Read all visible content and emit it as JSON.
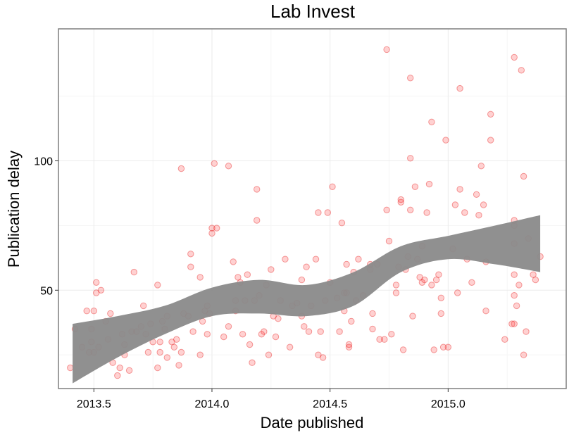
{
  "chart_data": {
    "type": "scatter",
    "title": "Lab Invest",
    "xlabel": "Date published",
    "ylabel": "Publication delay",
    "xlim": [
      2013.35,
      2015.5
    ],
    "ylim": [
      12,
      151
    ],
    "x_ticks": [
      2013.5,
      2014.0,
      2014.5,
      2015.0
    ],
    "x_tick_labels": [
      "2013.5",
      "2014.0",
      "2014.5",
      "2015.0"
    ],
    "y_ticks": [
      50,
      100
    ],
    "y_tick_labels": [
      "50",
      "100"
    ],
    "grid": true,
    "point_color": "#ff0000",
    "smooth_band": {
      "x": [
        2013.41,
        2013.6,
        2013.8,
        2014.0,
        2014.2,
        2014.4,
        2014.6,
        2014.8,
        2015.0,
        2015.2,
        2015.39
      ],
      "lower": [
        14,
        24,
        33,
        40,
        41,
        40,
        44,
        57,
        62,
        60,
        57
      ],
      "upper": [
        37,
        40,
        44,
        51,
        54,
        52,
        57,
        67,
        71,
        75,
        79
      ]
    },
    "points": [
      [
        2013.4,
        20
      ],
      [
        2013.42,
        35
      ],
      [
        2013.45,
        28
      ],
      [
        2013.47,
        42
      ],
      [
        2013.48,
        26
      ],
      [
        2013.49,
        35
      ],
      [
        2013.49,
        30
      ],
      [
        2013.5,
        42
      ],
      [
        2013.5,
        26
      ],
      [
        2013.51,
        53
      ],
      [
        2013.51,
        49
      ],
      [
        2013.52,
        28
      ],
      [
        2013.53,
        50
      ],
      [
        2013.55,
        38
      ],
      [
        2013.56,
        31
      ],
      [
        2013.57,
        41
      ],
      [
        2013.58,
        22
      ],
      [
        2013.6,
        17
      ],
      [
        2013.61,
        20
      ],
      [
        2013.62,
        33
      ],
      [
        2013.63,
        25
      ],
      [
        2013.63,
        29
      ],
      [
        2013.65,
        19
      ],
      [
        2013.66,
        34
      ],
      [
        2013.67,
        57
      ],
      [
        2013.68,
        34
      ],
      [
        2013.7,
        36
      ],
      [
        2013.71,
        44
      ],
      [
        2013.72,
        33
      ],
      [
        2013.73,
        26
      ],
      [
        2013.74,
        37
      ],
      [
        2013.75,
        30
      ],
      [
        2013.77,
        52
      ],
      [
        2013.77,
        20
      ],
      [
        2013.78,
        30
      ],
      [
        2013.78,
        26
      ],
      [
        2013.79,
        38
      ],
      [
        2013.8,
        35
      ],
      [
        2013.81,
        40
      ],
      [
        2013.81,
        24
      ],
      [
        2013.83,
        30
      ],
      [
        2013.84,
        28
      ],
      [
        2013.85,
        31
      ],
      [
        2013.86,
        21
      ],
      [
        2013.87,
        26
      ],
      [
        2013.87,
        97
      ],
      [
        2013.88,
        41
      ],
      [
        2013.9,
        40
      ],
      [
        2013.91,
        64
      ],
      [
        2013.91,
        59
      ],
      [
        2013.92,
        34
      ],
      [
        2013.95,
        55
      ],
      [
        2013.95,
        25
      ],
      [
        2013.96,
        38
      ],
      [
        2013.97,
        42
      ],
      [
        2013.98,
        44
      ],
      [
        2013.98,
        33
      ],
      [
        2013.99,
        41
      ],
      [
        2014.0,
        72
      ],
      [
        2014.0,
        74
      ],
      [
        2014.01,
        99
      ],
      [
        2014.02,
        74
      ],
      [
        2014.05,
        32
      ],
      [
        2014.07,
        98
      ],
      [
        2014.07,
        36
      ],
      [
        2014.09,
        61
      ],
      [
        2014.1,
        42
      ],
      [
        2014.1,
        46
      ],
      [
        2014.11,
        55
      ],
      [
        2014.12,
        53
      ],
      [
        2014.13,
        33
      ],
      [
        2014.14,
        46
      ],
      [
        2014.15,
        56
      ],
      [
        2014.16,
        29
      ],
      [
        2014.17,
        22
      ],
      [
        2014.18,
        46
      ],
      [
        2014.19,
        89
      ],
      [
        2014.19,
        77
      ],
      [
        2014.2,
        48
      ],
      [
        2014.21,
        33
      ],
      [
        2014.22,
        34
      ],
      [
        2014.23,
        52
      ],
      [
        2014.24,
        25
      ],
      [
        2014.25,
        58
      ],
      [
        2014.26,
        40
      ],
      [
        2014.27,
        32
      ],
      [
        2014.28,
        39
      ],
      [
        2014.29,
        46
      ],
      [
        2014.31,
        62
      ],
      [
        2014.33,
        28
      ],
      [
        2014.34,
        44
      ],
      [
        2014.36,
        45
      ],
      [
        2014.38,
        54
      ],
      [
        2014.38,
        40
      ],
      [
        2014.39,
        36
      ],
      [
        2014.4,
        59
      ],
      [
        2014.41,
        34
      ],
      [
        2014.42,
        44
      ],
      [
        2014.44,
        62
      ],
      [
        2014.45,
        80
      ],
      [
        2014.45,
        25
      ],
      [
        2014.46,
        34
      ],
      [
        2014.47,
        24
      ],
      [
        2014.48,
        46
      ],
      [
        2014.49,
        80
      ],
      [
        2014.5,
        53
      ],
      [
        2014.51,
        90
      ],
      [
        2014.53,
        47
      ],
      [
        2014.54,
        34
      ],
      [
        2014.55,
        76
      ],
      [
        2014.56,
        49
      ],
      [
        2014.56,
        42
      ],
      [
        2014.57,
        60
      ],
      [
        2014.57,
        49
      ],
      [
        2014.58,
        29
      ],
      [
        2014.58,
        28
      ],
      [
        2014.59,
        38
      ],
      [
        2014.6,
        57
      ],
      [
        2014.61,
        46
      ],
      [
        2014.62,
        62
      ],
      [
        2014.64,
        48
      ],
      [
        2014.67,
        58
      ],
      [
        2014.67,
        60
      ],
      [
        2014.68,
        41
      ],
      [
        2014.68,
        35
      ],
      [
        2014.7,
        60
      ],
      [
        2014.71,
        31
      ],
      [
        2014.73,
        31
      ],
      [
        2014.74,
        81
      ],
      [
        2014.74,
        143
      ],
      [
        2014.75,
        69
      ],
      [
        2014.76,
        33
      ],
      [
        2014.78,
        52
      ],
      [
        2014.78,
        49
      ],
      [
        2014.79,
        59
      ],
      [
        2014.8,
        85
      ],
      [
        2014.8,
        84
      ],
      [
        2014.81,
        27
      ],
      [
        2014.82,
        58
      ],
      [
        2014.83,
        63
      ],
      [
        2014.84,
        101
      ],
      [
        2014.84,
        81
      ],
      [
        2014.84,
        132
      ],
      [
        2014.85,
        40
      ],
      [
        2014.86,
        90
      ],
      [
        2014.87,
        62
      ],
      [
        2014.88,
        55
      ],
      [
        2014.89,
        53
      ],
      [
        2014.89,
        67
      ],
      [
        2014.9,
        54
      ],
      [
        2014.91,
        80
      ],
      [
        2014.92,
        91
      ],
      [
        2014.93,
        52
      ],
      [
        2014.93,
        115
      ],
      [
        2014.94,
        27
      ],
      [
        2014.95,
        54
      ],
      [
        2014.96,
        56
      ],
      [
        2014.97,
        47
      ],
      [
        2014.97,
        41
      ],
      [
        2014.98,
        28
      ],
      [
        2014.99,
        108
      ],
      [
        2015.0,
        28
      ],
      [
        2015.02,
        66
      ],
      [
        2015.03,
        83
      ],
      [
        2015.04,
        49
      ],
      [
        2015.05,
        89
      ],
      [
        2015.05,
        128
      ],
      [
        2015.07,
        80
      ],
      [
        2015.08,
        62
      ],
      [
        2015.1,
        53
      ],
      [
        2015.12,
        87
      ],
      [
        2015.13,
        79
      ],
      [
        2015.14,
        98
      ],
      [
        2015.15,
        83
      ],
      [
        2015.16,
        42
      ],
      [
        2015.16,
        61
      ],
      [
        2015.18,
        108
      ],
      [
        2015.18,
        118
      ],
      [
        2015.24,
        31
      ],
      [
        2015.27,
        37
      ],
      [
        2015.28,
        48
      ],
      [
        2015.28,
        77
      ],
      [
        2015.28,
        75
      ],
      [
        2015.28,
        140
      ],
      [
        2015.29,
        44
      ],
      [
        2015.3,
        52
      ],
      [
        2015.31,
        135
      ],
      [
        2015.32,
        94
      ],
      [
        2015.32,
        25
      ],
      [
        2015.33,
        34
      ],
      [
        2015.34,
        70
      ],
      [
        2015.36,
        56
      ],
      [
        2015.37,
        54
      ],
      [
        2015.39,
        63
      ],
      [
        2015.28,
        68
      ],
      [
        2015.28,
        56
      ],
      [
        2015.28,
        37
      ]
    ]
  }
}
